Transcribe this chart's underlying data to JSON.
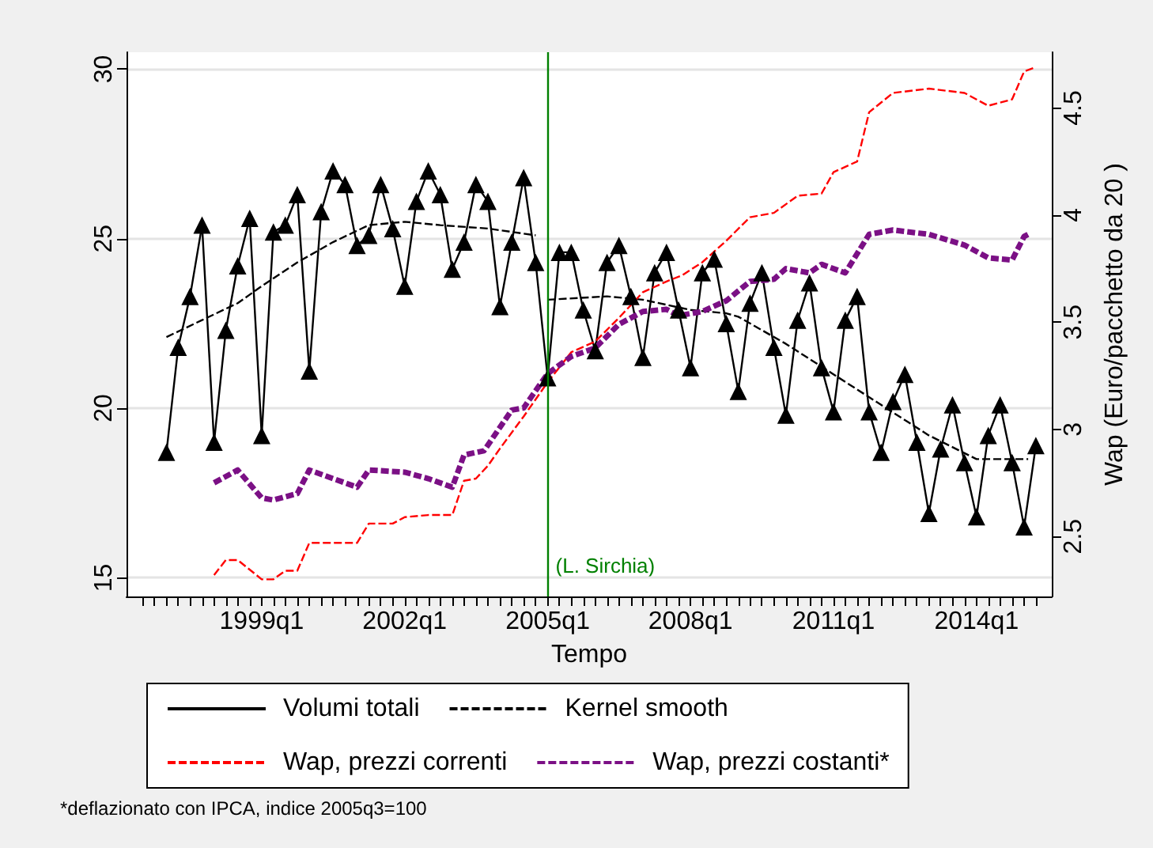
{
  "chart_data": {
    "type": "line",
    "xlabel": "Tempo",
    "y2label": "Wap (Euro/pacchetto da 20 )",
    "xlim": [
      "1996-03",
      "2015-08"
    ],
    "ylim": [
      14.45,
      30.5
    ],
    "y2lim": [
      2.22,
      4.76
    ],
    "yticks": [
      15,
      20,
      25,
      30
    ],
    "y2ticks": [
      2.5,
      3,
      3.5,
      4,
      4.5
    ],
    "xticks": [
      {
        "value": "1996-07",
        "label": null
      },
      {
        "value": "1996-10",
        "label": null
      },
      {
        "value": "1997-01",
        "label": null
      },
      {
        "value": "1997-04",
        "label": null
      },
      {
        "value": "1997-07",
        "label": null
      },
      {
        "value": "1997-10",
        "label": null
      },
      {
        "value": "1998-01",
        "label": null
      },
      {
        "value": "1998-04",
        "label": null
      },
      {
        "value": "1998-07",
        "label": null
      },
      {
        "value": "1998-10",
        "label": null
      },
      {
        "value": "1999-01",
        "label": "1999q1"
      },
      {
        "value": "1999-04",
        "label": null
      },
      {
        "value": "1999-07",
        "label": null
      },
      {
        "value": "1999-10",
        "label": null
      },
      {
        "value": "2000-01",
        "label": null
      },
      {
        "value": "2000-04",
        "label": null
      },
      {
        "value": "2000-07",
        "label": null
      },
      {
        "value": "2000-10",
        "label": null
      },
      {
        "value": "2001-01",
        "label": null
      },
      {
        "value": "2001-04",
        "label": null
      },
      {
        "value": "2001-07",
        "label": null
      },
      {
        "value": "2001-10",
        "label": null
      },
      {
        "value": "2002-01",
        "label": "2002q1"
      },
      {
        "value": "2002-04",
        "label": null
      },
      {
        "value": "2002-07",
        "label": null
      },
      {
        "value": "2002-10",
        "label": null
      },
      {
        "value": "2003-01",
        "label": null
      },
      {
        "value": "2003-04",
        "label": null
      },
      {
        "value": "2003-07",
        "label": null
      },
      {
        "value": "2003-10",
        "label": null
      },
      {
        "value": "2004-01",
        "label": null
      },
      {
        "value": "2004-04",
        "label": null
      },
      {
        "value": "2004-07",
        "label": null
      },
      {
        "value": "2004-10",
        "label": null
      },
      {
        "value": "2005-01",
        "label": "2005q1"
      },
      {
        "value": "2005-04",
        "label": null
      },
      {
        "value": "2005-07",
        "label": null
      },
      {
        "value": "2005-10",
        "label": null
      },
      {
        "value": "2006-01",
        "label": null
      },
      {
        "value": "2006-04",
        "label": null
      },
      {
        "value": "2006-07",
        "label": null
      },
      {
        "value": "2006-10",
        "label": null
      },
      {
        "value": "2007-01",
        "label": null
      },
      {
        "value": "2007-04",
        "label": null
      },
      {
        "value": "2007-07",
        "label": null
      },
      {
        "value": "2007-10",
        "label": null
      },
      {
        "value": "2008-01",
        "label": "2008q1"
      },
      {
        "value": "2008-04",
        "label": null
      },
      {
        "value": "2008-07",
        "label": null
      },
      {
        "value": "2008-10",
        "label": null
      },
      {
        "value": "2009-01",
        "label": null
      },
      {
        "value": "2009-04",
        "label": null
      },
      {
        "value": "2009-07",
        "label": null
      },
      {
        "value": "2009-10",
        "label": null
      },
      {
        "value": "2010-01",
        "label": null
      },
      {
        "value": "2010-04",
        "label": null
      },
      {
        "value": "2010-07",
        "label": null
      },
      {
        "value": "2010-10",
        "label": null
      },
      {
        "value": "2011-01",
        "label": "2011q1"
      },
      {
        "value": "2011-04",
        "label": null
      },
      {
        "value": "2011-07",
        "label": null
      },
      {
        "value": "2011-10",
        "label": null
      },
      {
        "value": "2012-01",
        "label": null
      },
      {
        "value": "2012-04",
        "label": null
      },
      {
        "value": "2012-07",
        "label": null
      },
      {
        "value": "2012-10",
        "label": null
      },
      {
        "value": "2013-01",
        "label": null
      },
      {
        "value": "2013-04",
        "label": null
      },
      {
        "value": "2013-07",
        "label": null
      },
      {
        "value": "2013-10",
        "label": null
      },
      {
        "value": "2014-01",
        "label": "2014q1"
      },
      {
        "value": "2014-04",
        "label": null
      },
      {
        "value": "2014-07",
        "label": null
      },
      {
        "value": "2014-10",
        "label": null
      },
      {
        "value": "2015-01",
        "label": null
      },
      {
        "value": "2015-04",
        "label": null
      }
    ],
    "grid": "y",
    "legend": "bottom",
    "series": [
      {
        "name": "Volumi totali",
        "color": "#000000",
        "marker": "triangle",
        "line_style": "solid",
        "axis": "y",
        "x": [
          "1997-01",
          "1997-04",
          "1997-07",
          "1997-10",
          "1998-01",
          "1998-04",
          "1998-07",
          "1998-10",
          "1999-01",
          "1999-04",
          "1999-07",
          "1999-10",
          "2000-01",
          "2000-04",
          "2000-07",
          "2000-10",
          "2001-01",
          "2001-04",
          "2001-07",
          "2001-10",
          "2002-01",
          "2002-04",
          "2002-07",
          "2002-10",
          "2003-01",
          "2003-04",
          "2003-07",
          "2003-10",
          "2004-01",
          "2004-04",
          "2004-07",
          "2004-10",
          "2005-01",
          "2005-04",
          "2005-07",
          "2005-10",
          "2006-01",
          "2006-04",
          "2006-07",
          "2006-10",
          "2007-01",
          "2007-04",
          "2007-07",
          "2007-10",
          "2008-01",
          "2008-04",
          "2008-07",
          "2008-10",
          "2009-01",
          "2009-04",
          "2009-07",
          "2009-10",
          "2010-01",
          "2010-04",
          "2010-07",
          "2010-10",
          "2011-01",
          "2011-04",
          "2011-07",
          "2011-10",
          "2012-01",
          "2012-04",
          "2012-07",
          "2012-10",
          "2013-01",
          "2013-04",
          "2013-07",
          "2013-10",
          "2014-01",
          "2014-04",
          "2014-07",
          "2014-10",
          "2015-01",
          "2015-04"
        ],
        "values": [
          18.7,
          21.8,
          23.3,
          25.4,
          19.0,
          22.3,
          24.2,
          25.6,
          19.2,
          25.2,
          25.4,
          26.3,
          21.1,
          25.8,
          27.0,
          26.6,
          24.8,
          25.1,
          26.6,
          25.3,
          23.6,
          26.1,
          27.0,
          26.3,
          24.1,
          24.9,
          26.6,
          26.1,
          23.0,
          24.9,
          26.8,
          24.3,
          20.9,
          24.6,
          24.6,
          22.9,
          21.7,
          24.3,
          24.8,
          23.3,
          21.5,
          24.0,
          24.6,
          22.9,
          21.2,
          24.0,
          24.4,
          22.5,
          20.5,
          23.1,
          24.0,
          21.8,
          19.8,
          22.6,
          23.7,
          21.2,
          19.9,
          22.6,
          23.3,
          19.9,
          18.7,
          20.2,
          21.0,
          19.0,
          16.9,
          18.8,
          20.1,
          18.4,
          16.8,
          19.2,
          20.1,
          18.4,
          16.5,
          18.9
        ]
      },
      {
        "name": "Kernel smooth",
        "color": "#000000",
        "marker": "none",
        "line_style": "dashed",
        "axis": "y",
        "x": [
          "1997-01",
          "1998-07",
          "1999-01",
          "1999-10",
          "2000-07",
          "2001-04",
          "2002-01",
          "2002-10",
          "2003-10",
          "2004-10",
          "2004-12",
          "2005-01",
          "2006-04",
          "2007-01",
          "2008-01",
          "2008-10",
          "2009-01",
          "2010-01",
          "2011-01",
          "2012-01",
          "2013-01",
          "2014-01",
          "2015-02"
        ],
        "values": [
          22.1,
          23.1,
          23.6,
          24.3,
          24.9,
          25.4,
          25.5,
          25.4,
          25.3,
          25.1,
          null,
          23.2,
          23.3,
          23.2,
          22.9,
          22.8,
          22.7,
          21.9,
          21.0,
          20.1,
          19.2,
          18.5,
          18.5
        ]
      },
      {
        "name": "Wap, prezzi correnti",
        "color": "#ff0000",
        "marker": "none",
        "line_style": "dashed",
        "axis": "y2",
        "x": [
          "1998-01",
          "1998-04",
          "1998-07",
          "1999-01",
          "1999-04",
          "1999-07",
          "1999-10",
          "2000-01",
          "2000-07",
          "2001-01",
          "2001-04",
          "2001-10",
          "2002-01",
          "2002-07",
          "2003-01",
          "2003-04",
          "2003-07",
          "2003-10",
          "2004-01",
          "2004-07",
          "2005-01",
          "2005-07",
          "2006-01",
          "2006-07",
          "2007-01",
          "2007-07",
          "2007-11",
          "2008-04",
          "2008-10",
          "2009-04",
          "2009-10",
          "2010-04",
          "2010-10",
          "2011-01",
          "2011-07",
          "2011-10",
          "2012-04",
          "2013-01",
          "2013-10",
          "2014-04",
          "2014-10",
          "2015-01",
          "2015-04"
        ],
        "values": [
          2.32,
          2.39,
          2.39,
          2.3,
          2.3,
          2.34,
          2.34,
          2.47,
          2.47,
          2.47,
          2.56,
          2.56,
          2.59,
          2.6,
          2.6,
          2.76,
          2.77,
          2.83,
          2.91,
          3.06,
          3.22,
          3.36,
          3.41,
          3.52,
          3.64,
          3.69,
          3.72,
          3.78,
          3.88,
          3.99,
          4.01,
          4.09,
          4.1,
          4.2,
          4.25,
          4.48,
          4.57,
          4.59,
          4.57,
          4.51,
          4.54,
          4.67,
          4.69
        ]
      },
      {
        "name": "Wap, prezzi costanti*",
        "color": "#7b1085",
        "marker": "none",
        "line_style": "dashed",
        "axis": "y2",
        "x": [
          "1998-01",
          "1998-07",
          "1999-01",
          "1999-04",
          "1999-10",
          "2000-01",
          "2000-07",
          "2001-01",
          "2001-04",
          "2002-01",
          "2002-07",
          "2003-01",
          "2003-04",
          "2003-09",
          "2004-04",
          "2004-07",
          "2005-01",
          "2005-07",
          "2006-01",
          "2006-07",
          "2007-01",
          "2007-07",
          "2007-10",
          "2008-04",
          "2008-10",
          "2009-04",
          "2009-10",
          "2010-01",
          "2010-07",
          "2010-10",
          "2011-04",
          "2011-10",
          "2012-04",
          "2013-01",
          "2013-10",
          "2014-04",
          "2014-10",
          "2015-01",
          "2015-02"
        ],
        "values": [
          2.75,
          2.81,
          2.68,
          2.67,
          2.7,
          2.81,
          2.77,
          2.73,
          2.81,
          2.8,
          2.77,
          2.73,
          2.88,
          2.9,
          3.09,
          3.1,
          3.26,
          3.34,
          3.38,
          3.49,
          3.55,
          3.56,
          3.53,
          3.55,
          3.6,
          3.69,
          3.7,
          3.75,
          3.73,
          3.77,
          3.73,
          3.91,
          3.93,
          3.91,
          3.86,
          3.8,
          3.79,
          3.9,
          3.91
        ]
      }
    ],
    "ref_lines": [
      {
        "axis": "x",
        "value": "2005-01",
        "label": "(L. Sirchia)",
        "color": "#008000"
      }
    ],
    "annotations": [
      "*deflazionato con IPCA, indice 2005q3=100"
    ]
  }
}
